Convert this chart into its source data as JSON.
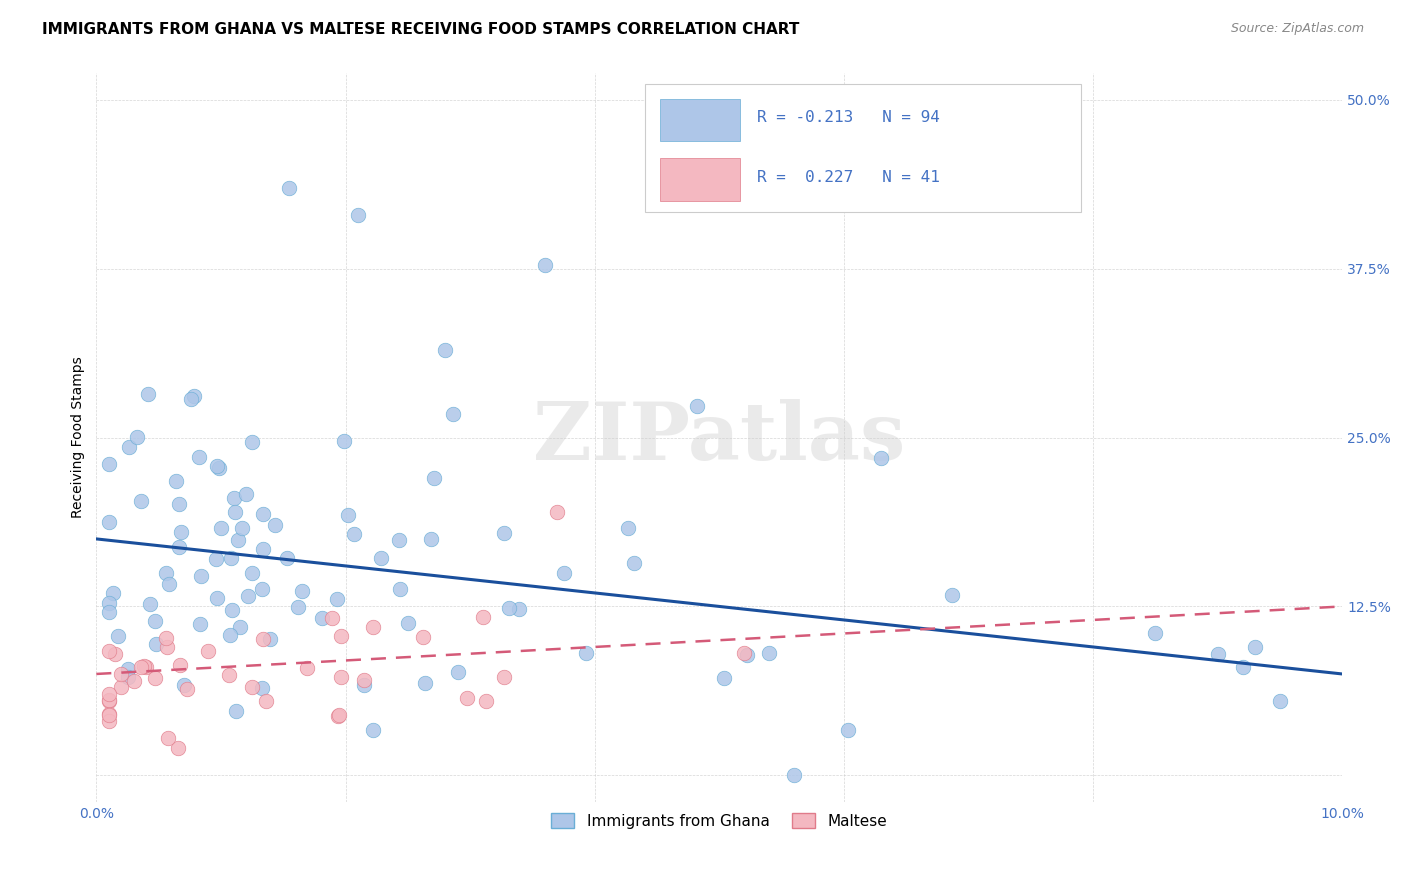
{
  "title": "IMMIGRANTS FROM GHANA VS MALTESE RECEIVING FOOD STAMPS CORRELATION CHART",
  "source": "Source: ZipAtlas.com",
  "ylabel": "Receiving Food Stamps",
  "xlim": [
    0.0,
    0.1
  ],
  "ylim": [
    -0.02,
    0.52
  ],
  "xticks": [
    0.0,
    0.02,
    0.04,
    0.06,
    0.08,
    0.1
  ],
  "xticklabels": [
    "0.0%",
    "",
    "",
    "",
    "",
    "10.0%"
  ],
  "yticks": [
    0.0,
    0.125,
    0.25,
    0.375,
    0.5
  ],
  "yticklabels": [
    "",
    "12.5%",
    "25.0%",
    "37.5%",
    "50.0%"
  ],
  "ghana_color": "#aec6e8",
  "ghana_edge": "#6aaed6",
  "maltese_color": "#f4b8c1",
  "maltese_edge": "#e07b8a",
  "trend_ghana_color": "#1a4f9c",
  "trend_maltese_color": "#d45a78",
  "legend1_label": "Immigrants from Ghana",
  "legend2_label": "Maltese",
  "watermark": "ZIPatlas",
  "title_fontsize": 11,
  "source_fontsize": 9,
  "label_fontsize": 10,
  "tick_fontsize": 10,
  "tick_color": "#4472c4",
  "ghana_trend_x0": 0.0,
  "ghana_trend_y0": 0.175,
  "ghana_trend_x1": 0.1,
  "ghana_trend_y1": 0.075,
  "maltese_trend_x0": 0.0,
  "maltese_trend_y0": 0.075,
  "maltese_trend_x1": 0.1,
  "maltese_trend_y1": 0.125
}
